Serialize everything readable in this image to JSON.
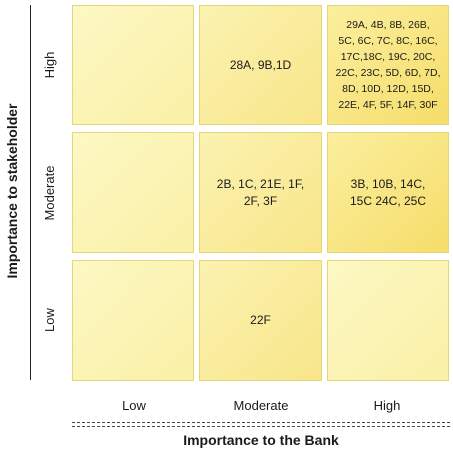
{
  "diagram": {
    "y_axis_title": "Importance to stakeholder",
    "x_axis_title": "Importance to the Bank",
    "row_labels": [
      "High",
      "Moderate",
      "Low"
    ],
    "col_labels": [
      "Low",
      "Moderate",
      "High"
    ],
    "cells": {
      "high_low": "",
      "high_moderate": "28A, 9B,1D",
      "high_high_lines": [
        "29A, 4B, 8B, 26B,",
        "5C, 6C, 7C, 8C, 16C,",
        "17C,18C, 19C, 20C,",
        "22C, 23C, 5D, 6D, 7D,",
        "8D, 10D, 12D, 15D,",
        "22E, 4F, 5F, 14F, 30F"
      ],
      "moderate_low": "",
      "moderate_moderate_lines": [
        "2B, 1C, 21E, 1F,",
        "2F, 3F"
      ],
      "moderate_high_lines": [
        "3B, 10B, 14C,",
        "15C 24C, 25C"
      ],
      "low_low": "",
      "low_moderate": "22F",
      "low_high": ""
    },
    "colors": {
      "light": "#fdf8c4",
      "mid": "#f8e68a",
      "dark": "#f6dd6a",
      "border": "#e2d77a"
    }
  }
}
